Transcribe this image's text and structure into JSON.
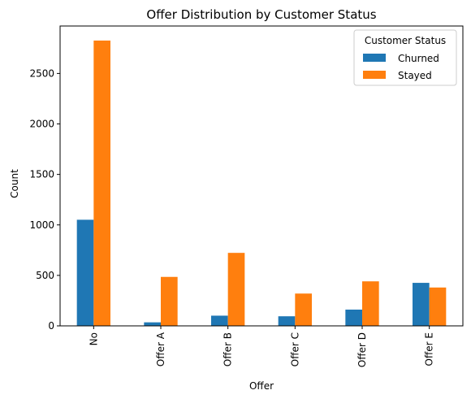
{
  "chart_data": {
    "type": "bar",
    "title": "Offer Distribution by Customer Status",
    "xlabel": "Offer",
    "ylabel": "Count",
    "categories": [
      "No",
      "Offer A",
      "Offer B",
      "Offer C",
      "Offer D",
      "Offer E"
    ],
    "series": [
      {
        "name": "Churned",
        "color": "#1f77b4",
        "values": [
          1051,
          35,
          101,
          95,
          161,
          426
        ]
      },
      {
        "name": "Stayed",
        "color": "#ff7f0e",
        "values": [
          2826,
          485,
          723,
          320,
          441,
          380
        ]
      }
    ],
    "ylim": [
      0,
      2970
    ],
    "yticks": [
      0,
      500,
      1000,
      1500,
      2000,
      2500
    ],
    "grid": false,
    "legend": {
      "title": "Customer Status",
      "placement": "top-right"
    }
  }
}
